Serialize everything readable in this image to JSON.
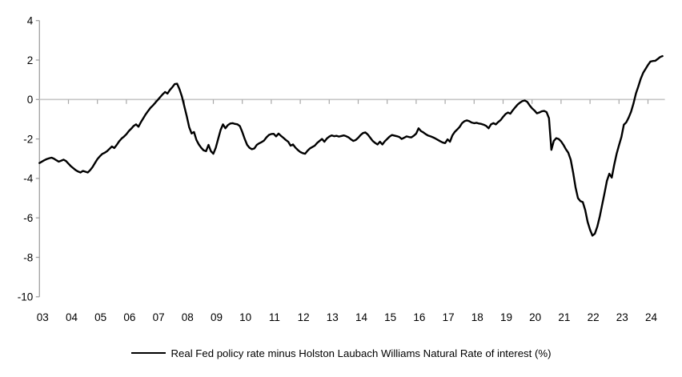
{
  "chart_data": {
    "type": "line",
    "title": "",
    "xlabel": "",
    "ylabel": "",
    "ylim": [
      -10,
      4
    ],
    "grid": false,
    "zero_line": true,
    "legend_position": "bottom-center",
    "background_color": "#ffffff",
    "axis_color": "#a0a0a0",
    "zero_line_color": "#c6c6c6",
    "tick_color": "#a8a8a8",
    "text_color": "#000000",
    "y_ticks": [
      4,
      2,
      0,
      -2,
      -4,
      -6,
      -8,
      -10
    ],
    "x_tick_labels": [
      "03",
      "04",
      "05",
      "06",
      "07",
      "08",
      "09",
      "10",
      "11",
      "12",
      "13",
      "14",
      "15",
      "16",
      "17",
      "18",
      "19",
      "20",
      "21",
      "22",
      "23",
      "24"
    ],
    "x_start": "2003-01",
    "x_end": "2024-07",
    "x_frequency": "monthly",
    "series": [
      {
        "name": "Real Fed policy rate minus Holston Laubach Williams Natural Rate of interest (%)",
        "color": "#000000",
        "values": [
          -3.22,
          -3.15,
          -3.08,
          -3.02,
          -2.98,
          -2.95,
          -3.0,
          -3.08,
          -3.15,
          -3.1,
          -3.05,
          -3.12,
          -3.25,
          -3.38,
          -3.48,
          -3.58,
          -3.65,
          -3.7,
          -3.62,
          -3.66,
          -3.7,
          -3.58,
          -3.42,
          -3.22,
          -3.02,
          -2.88,
          -2.76,
          -2.7,
          -2.62,
          -2.5,
          -2.38,
          -2.46,
          -2.3,
          -2.12,
          -1.98,
          -1.88,
          -1.76,
          -1.6,
          -1.48,
          -1.34,
          -1.26,
          -1.38,
          -1.15,
          -0.95,
          -0.75,
          -0.58,
          -0.42,
          -0.3,
          -0.16,
          -0.02,
          0.12,
          0.26,
          0.38,
          0.3,
          0.48,
          0.62,
          0.78,
          0.8,
          0.52,
          0.15,
          -0.35,
          -0.85,
          -1.4,
          -1.72,
          -1.65,
          -2.05,
          -2.28,
          -2.45,
          -2.58,
          -2.62,
          -2.3,
          -2.62,
          -2.75,
          -2.45,
          -2.0,
          -1.55,
          -1.26,
          -1.46,
          -1.3,
          -1.22,
          -1.2,
          -1.24,
          -1.26,
          -1.35,
          -1.65,
          -2.0,
          -2.3,
          -2.45,
          -2.52,
          -2.48,
          -2.3,
          -2.22,
          -2.16,
          -2.08,
          -1.92,
          -1.8,
          -1.75,
          -1.74,
          -1.87,
          -1.73,
          -1.84,
          -1.94,
          -2.05,
          -2.14,
          -2.34,
          -2.28,
          -2.44,
          -2.56,
          -2.66,
          -2.72,
          -2.75,
          -2.6,
          -2.48,
          -2.41,
          -2.34,
          -2.2,
          -2.1,
          -2.0,
          -2.14,
          -1.98,
          -1.88,
          -1.82,
          -1.86,
          -1.84,
          -1.88,
          -1.85,
          -1.82,
          -1.86,
          -1.92,
          -2.02,
          -2.1,
          -2.05,
          -1.94,
          -1.8,
          -1.7,
          -1.67,
          -1.78,
          -1.94,
          -2.1,
          -2.2,
          -2.28,
          -2.14,
          -2.28,
          -2.12,
          -2.0,
          -1.88,
          -1.8,
          -1.83,
          -1.86,
          -1.9,
          -2.0,
          -1.94,
          -1.87,
          -1.9,
          -1.92,
          -1.84,
          -1.73,
          -1.46,
          -1.6,
          -1.67,
          -1.76,
          -1.83,
          -1.87,
          -1.92,
          -1.98,
          -2.05,
          -2.12,
          -2.18,
          -2.21,
          -2.02,
          -2.14,
          -1.82,
          -1.64,
          -1.52,
          -1.39,
          -1.2,
          -1.1,
          -1.06,
          -1.1,
          -1.17,
          -1.2,
          -1.18,
          -1.22,
          -1.24,
          -1.28,
          -1.34,
          -1.46,
          -1.26,
          -1.2,
          -1.26,
          -1.14,
          -1.04,
          -0.88,
          -0.74,
          -0.66,
          -0.72,
          -0.55,
          -0.4,
          -0.26,
          -0.16,
          -0.08,
          -0.05,
          -0.12,
          -0.3,
          -0.45,
          -0.56,
          -0.7,
          -0.66,
          -0.6,
          -0.58,
          -0.64,
          -0.95,
          -2.55,
          -2.1,
          -1.96,
          -2.0,
          -2.12,
          -2.3,
          -2.52,
          -2.7,
          -3.05,
          -3.7,
          -4.45,
          -5.0,
          -5.15,
          -5.2,
          -5.6,
          -6.2,
          -6.6,
          -6.9,
          -6.8,
          -6.45,
          -5.95,
          -5.35,
          -4.75,
          -4.12,
          -3.76,
          -3.96,
          -3.32,
          -2.76,
          -2.32,
          -1.9,
          -1.28,
          -1.16,
          -0.92,
          -0.62,
          -0.2,
          0.3,
          0.66,
          1.05,
          1.35,
          1.55,
          1.75,
          1.92,
          1.95,
          1.96,
          2.05,
          2.15,
          2.2
        ]
      }
    ]
  },
  "legend": {
    "label": "Real Fed policy rate minus Holston Laubach Williams Natural Rate of interest (%)"
  }
}
